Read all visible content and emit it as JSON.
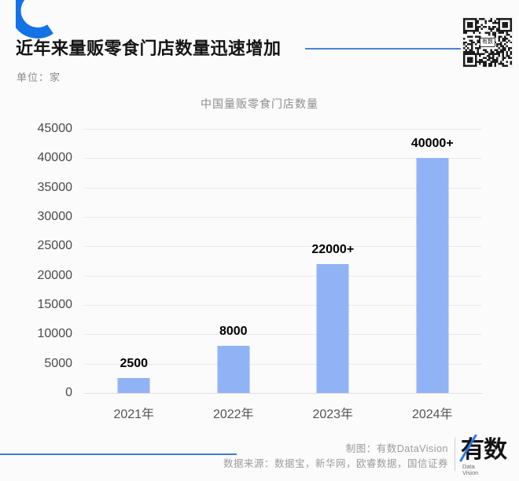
{
  "header": {
    "title": "近年来量贩零食门店数量迅速增加",
    "unit_label": "单位：家"
  },
  "chart_data": {
    "type": "bar",
    "title": "中国量贩零食门店数量",
    "unit": "家",
    "categories": [
      "2021年",
      "2022年",
      "2023年",
      "2024年"
    ],
    "values": [
      2500,
      8000,
      22000,
      40000
    ],
    "bar_labels": [
      "2500",
      "8000",
      "22000+",
      "40000+"
    ],
    "xlabel": "",
    "ylabel": "",
    "ylim": [
      0,
      45000
    ],
    "yticks": [
      0,
      5000,
      10000,
      15000,
      20000,
      25000,
      30000,
      35000,
      40000,
      45000
    ],
    "grid": true,
    "legend_position": "none",
    "bar_color": "#90b3f5"
  },
  "qr_code": {
    "center_label": "有数"
  },
  "footer": {
    "credit": "制图：有数DataVision",
    "sources": "数据来源：数据宝，新华网，欧睿数据，国信证券",
    "logo": {
      "text": "有数",
      "sub_line1": "Data",
      "sub_line2": "Vision"
    }
  },
  "colors": {
    "accent_blue": "#1272e6",
    "rule_blue": "#4a84cf",
    "bar_blue": "#90b3f5"
  }
}
